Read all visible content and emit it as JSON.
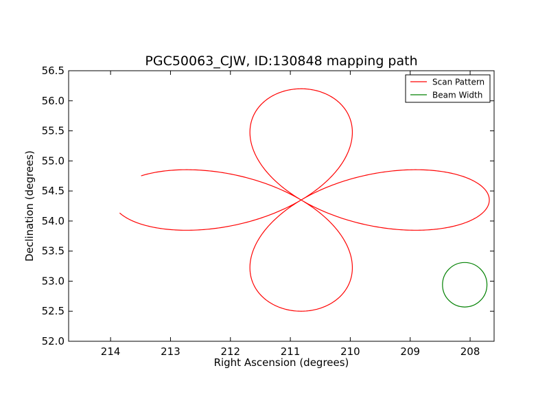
{
  "chart_data": {
    "type": "line",
    "title": "PGC50063_CJW, ID:130848 mapping path",
    "xlabel": "Right Ascension (degrees)",
    "ylabel": "Declination (degrees)",
    "xlim": [
      214.7,
      207.6
    ],
    "ylim": [
      52.0,
      56.5
    ],
    "x_reversed": true,
    "xticks": [
      214,
      213,
      212,
      211,
      210,
      209,
      208
    ],
    "yticks": [
      52.0,
      52.5,
      53.0,
      53.5,
      54.0,
      54.5,
      55.0,
      55.5,
      56.0,
      56.5
    ],
    "xtick_labels": [
      "214",
      "213",
      "212",
      "211",
      "210",
      "209",
      "208"
    ],
    "ytick_labels": [
      "52.0",
      "52.5",
      "53.0",
      "53.5",
      "54.0",
      "54.5",
      "55.0",
      "55.5",
      "56.0",
      "56.5"
    ],
    "legend_position": "top-right",
    "grid": false,
    "series": [
      {
        "name": "Scan Pattern",
        "color": "#ff0000",
        "pattern": "four-petal rose scan",
        "center": {
          "ra": 210.82,
          "dec": 54.35
        },
        "ra_half_amplitude": 3.14,
        "dec_half_amplitude": 1.85,
        "start": {
          "ra": 213.67,
          "dec": 54.69
        },
        "end": {
          "ra": 213.98,
          "dec": 54.3
        }
      },
      {
        "name": "Beam Width",
        "color": "#008000",
        "shape": "circle",
        "center": {
          "ra": 208.09,
          "dec": 52.94
        },
        "radius_dec": 0.37
      }
    ]
  }
}
